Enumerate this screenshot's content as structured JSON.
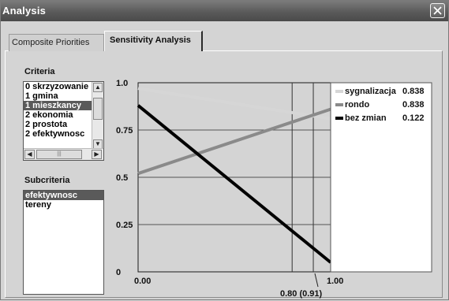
{
  "window": {
    "title": "Analysis"
  },
  "tabs": [
    {
      "label": "Composite Priorities",
      "active": false
    },
    {
      "label": "Sensitivity Analysis",
      "active": true
    }
  ],
  "criteria": {
    "label": "Criteria",
    "items": [
      {
        "label": "0 skrzyzowanie",
        "selected": false
      },
      {
        "label": "1 gmina",
        "selected": false
      },
      {
        "label": "1 mieszkancy",
        "selected": true
      },
      {
        "label": "2 ekonomia",
        "selected": false
      },
      {
        "label": "2 prostota",
        "selected": false
      },
      {
        "label": "2 efektywnosc",
        "selected": false
      }
    ]
  },
  "subcriteria": {
    "label": "Subcriteria",
    "items": [
      {
        "label": "efektywnosc",
        "selected": true
      },
      {
        "label": "tereny",
        "selected": false
      }
    ]
  },
  "chart_data": {
    "type": "line",
    "xlim": [
      0,
      1
    ],
    "ylim": [
      0,
      1
    ],
    "x_ticks": [
      "0.00",
      "1.00"
    ],
    "y_ticks": [
      "0",
      "0.25",
      "0.5",
      "0.75",
      "1.0"
    ],
    "marker_label": "0.80 (0.91)",
    "marker_lines_x": [
      0.8,
      0.91
    ],
    "series": [
      {
        "name": "sygnalizacja",
        "value_label": "0.838",
        "color": "#d6d6d6",
        "x": [
          0,
          1
        ],
        "y": [
          0.97,
          0.81
        ]
      },
      {
        "name": "rondo",
        "value_label": "0.838",
        "color": "#8a8a8a",
        "x": [
          0,
          1
        ],
        "y": [
          0.52,
          0.86
        ]
      },
      {
        "name": "bez zmian",
        "value_label": "0.122",
        "color": "#000000",
        "x": [
          0,
          1
        ],
        "y": [
          0.88,
          0.05
        ]
      }
    ],
    "grid": true,
    "legend": "right"
  }
}
